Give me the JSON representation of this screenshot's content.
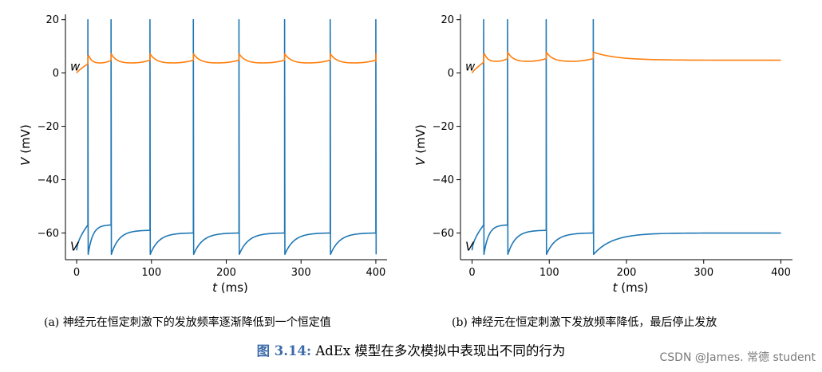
{
  "chart_data": [
    {
      "type": "line",
      "subcaption": "(a) 神经元在恒定刺激下的发放频率逐渐降低到一个恒定值",
      "xlabel_var": "t",
      "xlabel_unit": "(ms)",
      "ylabel_var": "V",
      "ylabel_unit": "(mV)",
      "xlim": [
        -15,
        415
      ],
      "ylim": [
        -70,
        22
      ],
      "xticks": [
        0,
        100,
        200,
        300,
        400
      ],
      "yticks": [
        20,
        0,
        -20,
        -40,
        -60
      ],
      "xtick_labels": [
        "0",
        "100",
        "200",
        "300",
        "400"
      ],
      "ytick_labels": [
        "20",
        "0",
        "−20",
        "−40",
        "−60"
      ],
      "series": [
        {
          "name": "V",
          "color": "#1f77b4",
          "v_reset": -68.0,
          "spike_times": [
            15,
            46,
            98,
            156,
            217,
            278,
            339,
            400
          ],
          "pre_spike_values": [
            -57,
            -57,
            -59,
            -60,
            -60,
            -60,
            -60,
            -60
          ],
          "spike_peak": 20
        },
        {
          "name": "w",
          "color": "#ff7f0e",
          "start_value": 0,
          "steady_value": 4.2,
          "jump": 3.0
        }
      ],
      "labels": {
        "V": "V",
        "w": "w"
      }
    },
    {
      "type": "line",
      "subcaption": "(b) 神经元在恒定刺激下发放频率降低，最后停止发放",
      "xlabel_var": "t",
      "xlabel_unit": "(ms)",
      "ylabel_var": "V",
      "ylabel_unit": "(mV)",
      "xlim": [
        -15,
        415
      ],
      "ylim": [
        -70,
        22
      ],
      "xticks": [
        0,
        100,
        200,
        300,
        400
      ],
      "yticks": [
        20,
        0,
        -20,
        -40,
        -60
      ],
      "xtick_labels": [
        "0",
        "100",
        "200",
        "300",
        "400"
      ],
      "ytick_labels": [
        "20",
        "0",
        "−20",
        "−40",
        "−60"
      ],
      "series": [
        {
          "name": "V",
          "color": "#1f77b4",
          "v_reset": -68.0,
          "spike_times": [
            15,
            46,
            96,
            157
          ],
          "pre_spike_values": [
            -57,
            -57,
            -59,
            -60
          ],
          "spike_peak": 20,
          "rest_value": -60
        },
        {
          "name": "w",
          "color": "#ff7f0e",
          "start_value": 0,
          "steady_value": 4.8,
          "jump": 3.0
        }
      ],
      "labels": {
        "V": "V",
        "w": "w"
      }
    }
  ],
  "caption": {
    "number": "图 3.14:",
    "text": " AdEx 模型在多次模拟中表现出不同的行为"
  },
  "watermark": "CSDN @James. 常德 student"
}
